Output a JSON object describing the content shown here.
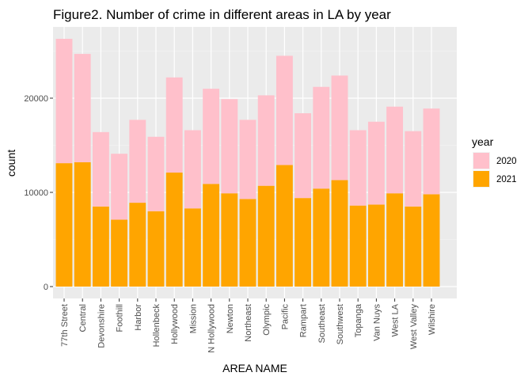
{
  "chart_data": {
    "type": "bar",
    "stacked": true,
    "title": "Figure2. Number of crime in different areas in LA by year",
    "xlabel": "AREA NAME",
    "ylabel": "count",
    "ylim": [
      0,
      27000
    ],
    "yticks": [
      0,
      10000,
      20000
    ],
    "ytick_labels": [
      "0",
      "10000",
      "20000"
    ],
    "grid": true,
    "legend": {
      "title": "year",
      "position": "right"
    },
    "categories": [
      "77th Street",
      "Central",
      "Devonshire",
      "Foothill",
      "Harbor",
      "Hollenbeck",
      "Hollywood",
      "Mission",
      "N Hollywood",
      "Newton",
      "Northeast",
      "Olympic",
      "Pacific",
      "Rampart",
      "Southeast",
      "Southwest",
      "Topanga",
      "Van Nuys",
      "West LA",
      "West Valley",
      "Wilshire"
    ],
    "series": [
      {
        "name": "2020",
        "color": "#FFC0CB",
        "values": [
          13200,
          11500,
          7900,
          7000,
          8800,
          7900,
          10100,
          8300,
          10100,
          10000,
          8400,
          9600,
          11600,
          9000,
          10800,
          11100,
          8000,
          8800,
          9200,
          8000,
          9100
        ]
      },
      {
        "name": "2021",
        "color": "#FFA500",
        "values": [
          13100,
          13200,
          8500,
          7100,
          8900,
          8000,
          12100,
          8300,
          10900,
          9900,
          9300,
          10700,
          12900,
          9400,
          10400,
          11300,
          8600,
          8700,
          9900,
          8500,
          9800
        ]
      }
    ]
  }
}
